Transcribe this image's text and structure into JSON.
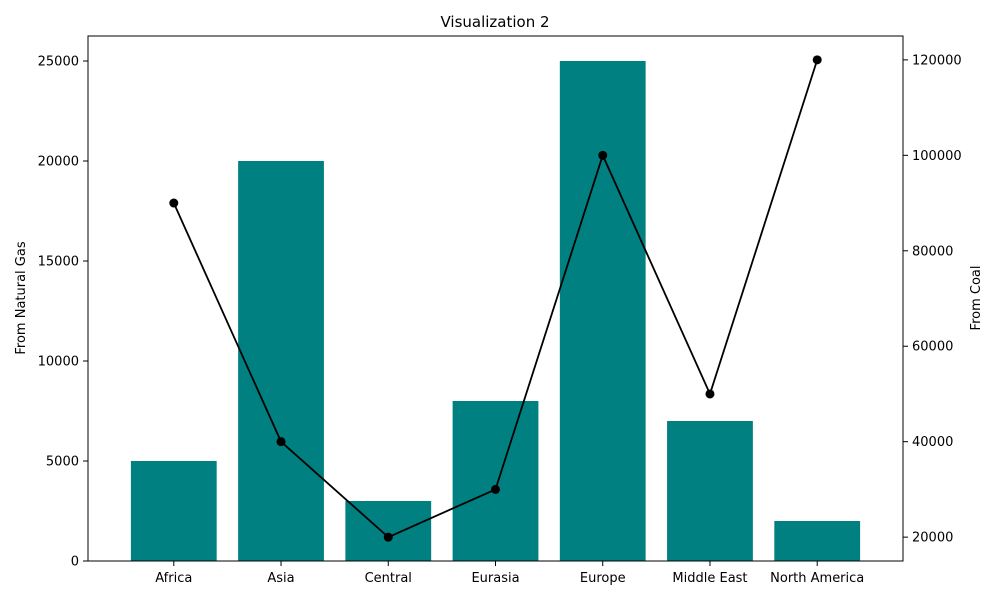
{
  "chart_data": {
    "type": "bar",
    "title": "Visualization 2",
    "categories": [
      "Africa",
      "Asia",
      "Central",
      "Eurasia",
      "Europe",
      "Middle East",
      "North America"
    ],
    "series": [
      {
        "name": "From Natural Gas",
        "type": "bar",
        "axis": "left",
        "color": "#008080",
        "values": [
          5000,
          20000,
          3000,
          8000,
          25000,
          7000,
          2000
        ]
      },
      {
        "name": "From Coal",
        "type": "line",
        "axis": "right",
        "color": "#000000",
        "values": [
          90000,
          40000,
          20000,
          30000,
          100000,
          50000,
          120000
        ]
      }
    ],
    "ylabel": "From Natural Gas",
    "y2label": "From Coal",
    "ylim": [
      0,
      26250
    ],
    "y2lim": [
      15000,
      125000
    ],
    "yticks": [
      0,
      5000,
      10000,
      15000,
      20000,
      25000
    ],
    "y2ticks": [
      20000,
      40000,
      60000,
      80000,
      100000,
      120000
    ],
    "grid": false,
    "legend": "none"
  }
}
